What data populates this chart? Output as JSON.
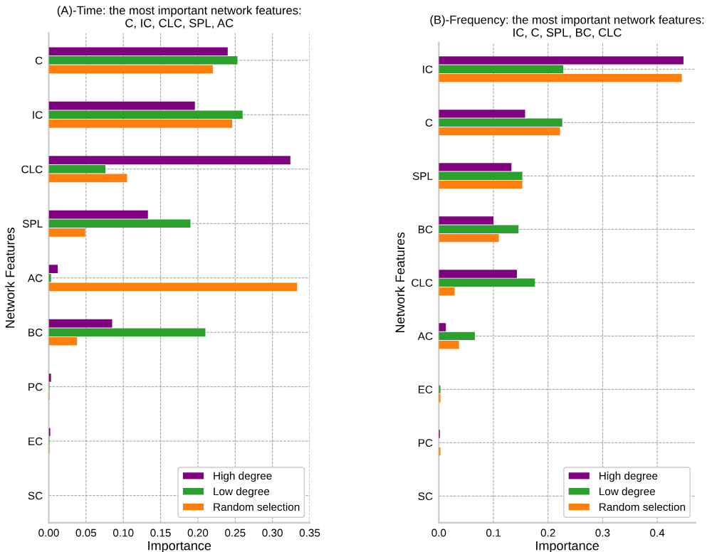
{
  "chart_data": [
    {
      "type": "bar",
      "orientation": "horizontal",
      "title": "(A)-Time: the most important network features:\nC, IC, CLC, SPL, AC",
      "xlabel": "Importance",
      "ylabel": "Network Features",
      "categories": [
        "C",
        "IC",
        "CLC",
        "SPL",
        "AC",
        "BC",
        "PC",
        "EC",
        "SC"
      ],
      "series": [
        {
          "name": "High degree",
          "color": "#800080",
          "values": [
            0.24,
            0.196,
            0.324,
            0.133,
            0.012,
            0.085,
            0.003,
            0.002,
            0
          ]
        },
        {
          "name": "Low degree",
          "color": "#2ca02c",
          "values": [
            0.253,
            0.26,
            0.076,
            0.19,
            0.003,
            0.21,
            0.001,
            0.001,
            0
          ]
        },
        {
          "name": "Random selection",
          "color": "#ff7f0e",
          "values": [
            0.22,
            0.246,
            0.105,
            0.049,
            0.333,
            0.038,
            0.001,
            0.001,
            0
          ]
        }
      ],
      "xlim": [
        0,
        0.35
      ],
      "xticks": [
        {
          "value": 0,
          "label": "0.00"
        },
        0.05,
        {
          "value": 0.1,
          "label": "0.10"
        },
        0.15,
        {
          "value": 0.2,
          "label": "0.20"
        },
        0.25,
        {
          "value": 0.3,
          "label": "0.30"
        },
        0.35
      ],
      "grid": true,
      "legend": "lower right"
    },
    {
      "type": "bar",
      "orientation": "horizontal",
      "title": "(B)-Frequency: the most important network features:\nIC, C, SPL, BC, CLC",
      "xlabel": "Importance",
      "ylabel": "Network Features",
      "categories": [
        "IC",
        "C",
        "SPL",
        "BC",
        "CLC",
        "AC",
        "EC",
        "PC",
        "SC"
      ],
      "series": [
        {
          "name": "High degree",
          "color": "#800080",
          "values": [
            0.448,
            0.158,
            0.133,
            0.1,
            0.143,
            0.013,
            0,
            0.002,
            0
          ]
        },
        {
          "name": "Low degree",
          "color": "#2ca02c",
          "values": [
            0.228,
            0.226,
            0.153,
            0.146,
            0.176,
            0.066,
            0.003,
            0,
            0
          ]
        },
        {
          "name": "Random selection",
          "color": "#ff7f0e",
          "values": [
            0.445,
            0.222,
            0.153,
            0.11,
            0.029,
            0.037,
            0.003,
            0.003,
            0
          ]
        }
      ],
      "xlim": [
        0,
        0.47
      ],
      "xticks": [
        {
          "value": 0,
          "label": "0.0"
        },
        0.1,
        0.2,
        0.3,
        0.4
      ],
      "grid": true,
      "legend": "lower right"
    }
  ]
}
